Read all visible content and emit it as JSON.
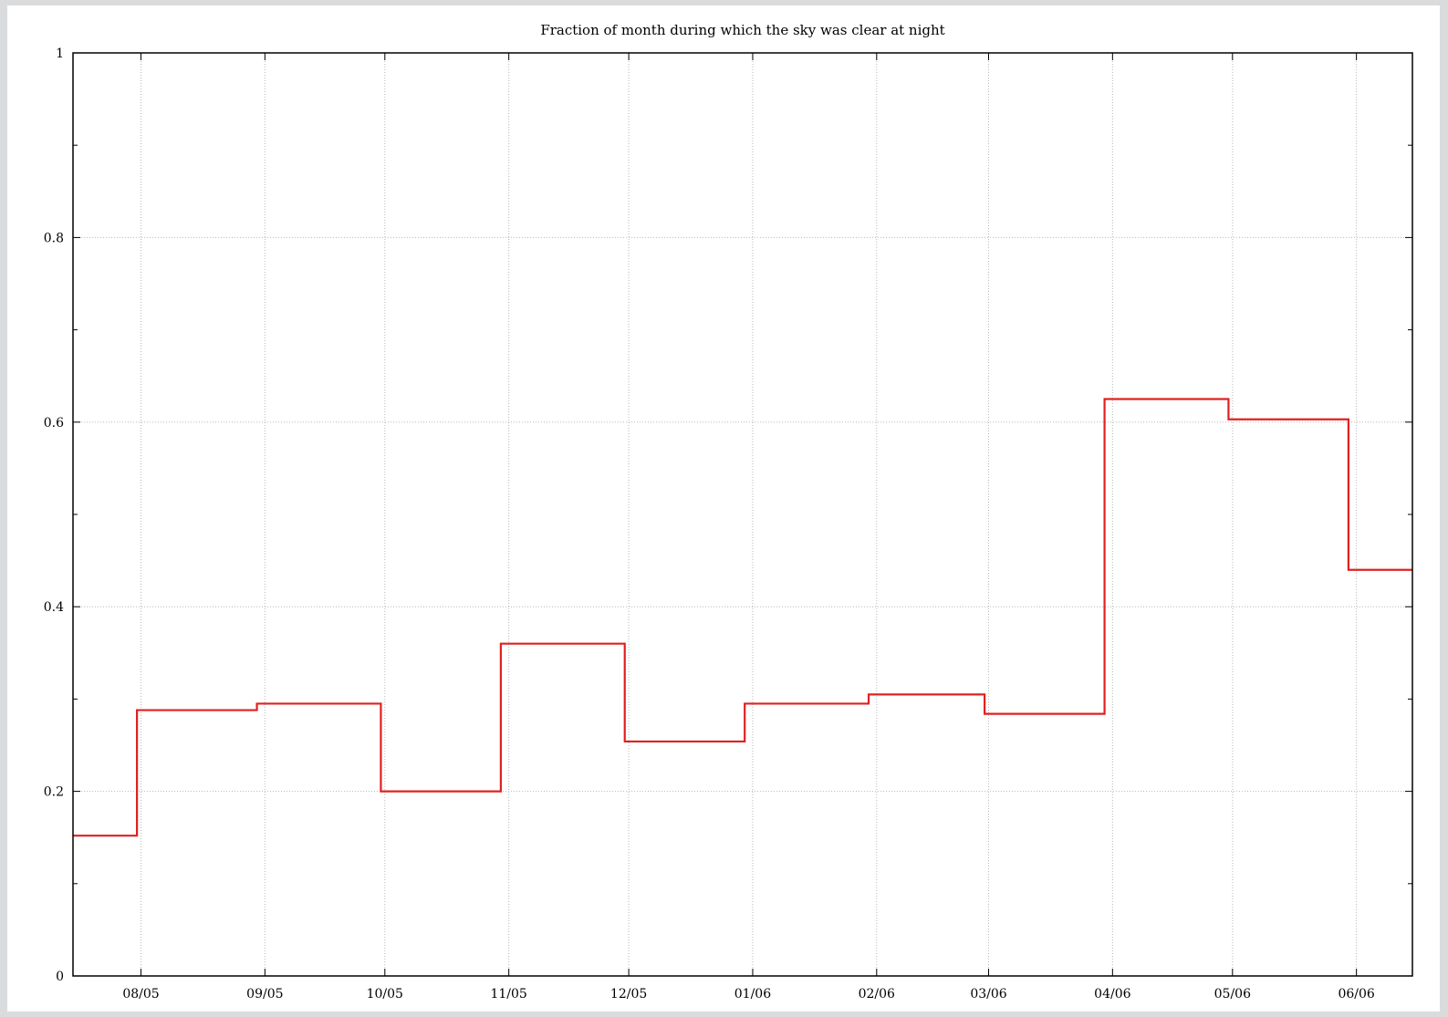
{
  "chart_data": {
    "type": "line",
    "step": true,
    "title": "Fraction of month during which the sky was clear at night",
    "xlabel": "",
    "ylabel": "",
    "ylim": [
      0,
      1
    ],
    "yticks": [
      "0",
      "0.2",
      "0.4",
      "0.6",
      "0.8",
      "1"
    ],
    "ytick_values": [
      0,
      0.2,
      0.4,
      0.6,
      0.8,
      1
    ],
    "x_tick_labels": [
      "08/05",
      "09/05",
      "10/05",
      "11/05",
      "12/05",
      "01/06",
      "02/06",
      "03/06",
      "04/06",
      "05/06",
      "06/06"
    ],
    "xlim": [
      "2005-07-15",
      "2006-06-15"
    ],
    "x_tick_dates": [
      "2005-08-01",
      "2005-09-01",
      "2005-10-01",
      "2005-11-01",
      "2005-12-01",
      "2006-01-01",
      "2006-02-01",
      "2006-03-01",
      "2006-04-01",
      "2006-05-01",
      "2006-06-01"
    ],
    "grid": true,
    "line_color": "#e02020",
    "series": [
      {
        "x": [
          "2005-07-15",
          "2005-07-31",
          "2005-08-30",
          "2005-09-30",
          "2005-10-30",
          "2005-11-30",
          "2005-12-30",
          "2006-01-30",
          "2006-02-28",
          "2006-03-30",
          "2006-04-30",
          "2006-05-30"
        ],
        "values": [
          0.152,
          0.288,
          0.295,
          0.2,
          0.36,
          0.254,
          0.295,
          0.305,
          0.284,
          0.625,
          0.603,
          0.44
        ]
      }
    ]
  }
}
